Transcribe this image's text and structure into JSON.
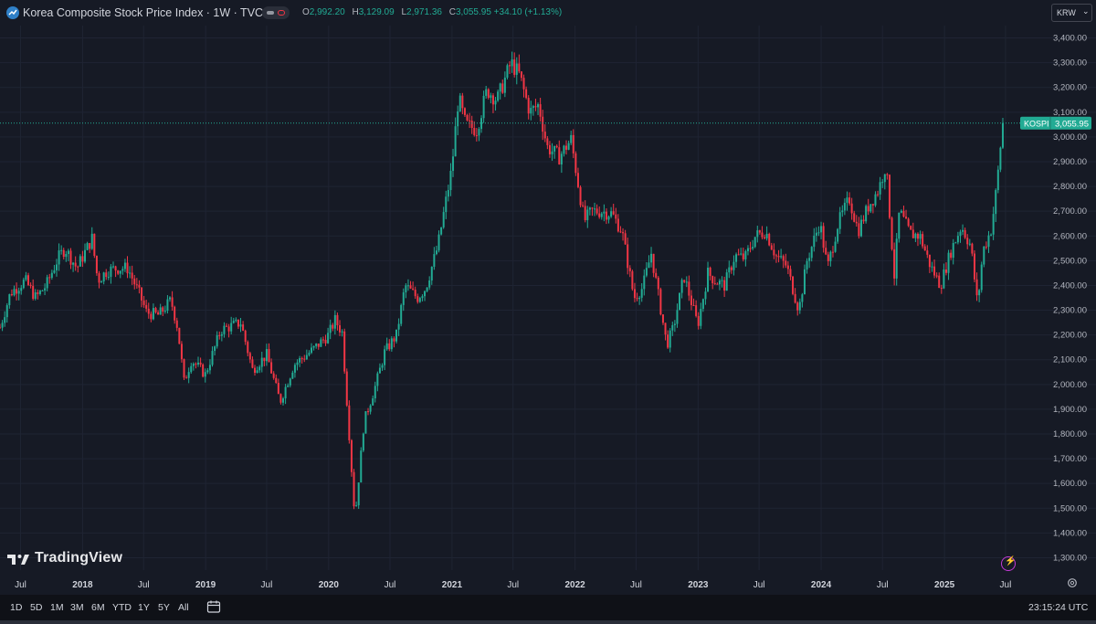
{
  "header": {
    "symbol_title": "Korea Composite Stock Price Index · 1W · TVC",
    "ohlc": [
      {
        "key": "O",
        "value": "2,992.20"
      },
      {
        "key": "H",
        "value": "3,129.09"
      },
      {
        "key": "L",
        "value": "2,971.36"
      },
      {
        "key": "C",
        "value": "3,055.95 +34.10 (+1.13%)"
      }
    ],
    "currency": "KRW",
    "currency_chevron": "⌄"
  },
  "branding": {
    "logo_text": "TradingView"
  },
  "bottom_bar": {
    "ranges": [
      "1D",
      "5D",
      "1M",
      "3M",
      "6M",
      "YTD",
      "1Y",
      "5Y",
      "All"
    ],
    "clock": "23:15:24 UTC"
  },
  "colors": {
    "background": "#161a25",
    "up": "#22ab94",
    "down": "#f23645",
    "grid": "#1f2433",
    "price_tag": "#22ab94"
  },
  "chart_data": {
    "type": "candlestick",
    "title": "Korea Composite Stock Price Index · 1W · TVC",
    "series_label": "KOSPI",
    "last_price": 3055.95,
    "last_price_label": "3,055.95",
    "ylim": [
      1250,
      3450
    ],
    "y_ticks": [
      1300,
      1400,
      1500,
      1600,
      1700,
      1800,
      1900,
      2000,
      2100,
      2200,
      2300,
      2400,
      2500,
      2600,
      2700,
      2800,
      2900,
      3000,
      3100,
      3200,
      3300,
      3400
    ],
    "y_tick_labels": [
      "1,300.00",
      "1,400.00",
      "1,500.00",
      "1,600.00",
      "1,700.00",
      "1,800.00",
      "1,900.00",
      "2,000.00",
      "2,100.00",
      "2,200.00",
      "2,300.00",
      "2,400.00",
      "2,500.00",
      "2,600.00",
      "2,700.00",
      "2,800.00",
      "2,900.00",
      "3,000.00",
      "3,100.00",
      "3,200.00",
      "3,300.00",
      "3,400.00"
    ],
    "x_range": [
      "2017-05-01",
      "2025-07-31"
    ],
    "x_ticks": [
      {
        "date": "2017-07-01",
        "label": "Jul",
        "bold": false
      },
      {
        "date": "2018-01-01",
        "label": "2018",
        "bold": true
      },
      {
        "date": "2018-07-01",
        "label": "Jul",
        "bold": false
      },
      {
        "date": "2019-01-01",
        "label": "2019",
        "bold": true
      },
      {
        "date": "2019-07-01",
        "label": "Jul",
        "bold": false
      },
      {
        "date": "2020-01-01",
        "label": "2020",
        "bold": true
      },
      {
        "date": "2020-07-01",
        "label": "Jul",
        "bold": false
      },
      {
        "date": "2021-01-01",
        "label": "2021",
        "bold": true
      },
      {
        "date": "2021-07-01",
        "label": "Jul",
        "bold": false
      },
      {
        "date": "2022-01-01",
        "label": "2022",
        "bold": true
      },
      {
        "date": "2022-07-01",
        "label": "Jul",
        "bold": false
      },
      {
        "date": "2023-01-01",
        "label": "2023",
        "bold": true
      },
      {
        "date": "2023-07-01",
        "label": "Jul",
        "bold": false
      },
      {
        "date": "2024-01-01",
        "label": "2024",
        "bold": true
      },
      {
        "date": "2024-07-01",
        "label": "Jul",
        "bold": false
      },
      {
        "date": "2025-01-01",
        "label": "2025",
        "bold": true
      },
      {
        "date": "2025-07-01",
        "label": "Jul",
        "bold": false
      }
    ],
    "grid": true,
    "close_path": [
      [
        "2017-05-01",
        2230
      ],
      [
        "2017-06-01",
        2370
      ],
      [
        "2017-07-15",
        2420
      ],
      [
        "2017-08-15",
        2350
      ],
      [
        "2017-09-15",
        2400
      ],
      [
        "2017-10-20",
        2510
      ],
      [
        "2017-11-10",
        2550
      ],
      [
        "2017-12-15",
        2470
      ],
      [
        "2018-01-29",
        2590
      ],
      [
        "2018-02-15",
        2420
      ],
      [
        "2018-03-15",
        2460
      ],
      [
        "2018-04-15",
        2470
      ],
      [
        "2018-05-15",
        2470
      ],
      [
        "2018-06-20",
        2360
      ],
      [
        "2018-07-10",
        2290
      ],
      [
        "2018-08-15",
        2280
      ],
      [
        "2018-09-20",
        2340
      ],
      [
        "2018-10-10",
        2230
      ],
      [
        "2018-10-29",
        2010
      ],
      [
        "2018-11-20",
        2100
      ],
      [
        "2018-12-31",
        2040
      ],
      [
        "2019-02-15",
        2220
      ],
      [
        "2019-04-15",
        2250
      ],
      [
        "2019-05-20",
        2060
      ],
      [
        "2019-07-01",
        2120
      ],
      [
        "2019-08-10",
        1930
      ],
      [
        "2019-09-20",
        2080
      ],
      [
        "2019-11-15",
        2140
      ],
      [
        "2019-12-31",
        2200
      ],
      [
        "2020-01-20",
        2260
      ],
      [
        "2020-02-10",
        2210
      ],
      [
        "2020-03-19",
        1457
      ],
      [
        "2020-04-15",
        1850
      ],
      [
        "2020-05-20",
        2000
      ],
      [
        "2020-06-15",
        2130
      ],
      [
        "2020-07-20",
        2200
      ],
      [
        "2020-08-15",
        2400
      ],
      [
        "2020-09-20",
        2350
      ],
      [
        "2020-10-15",
        2390
      ],
      [
        "2020-11-20",
        2560
      ],
      [
        "2020-12-31",
        2870
      ],
      [
        "2021-01-20",
        3160
      ],
      [
        "2021-02-10",
        3050
      ],
      [
        "2021-03-15",
        3030
      ],
      [
        "2021-04-15",
        3190
      ],
      [
        "2021-05-15",
        3150
      ],
      [
        "2021-06-25",
        3300
      ],
      [
        "2021-07-20",
        3250
      ],
      [
        "2021-08-20",
        3100
      ],
      [
        "2021-09-15",
        3130
      ],
      [
        "2021-10-10",
        2960
      ],
      [
        "2021-11-15",
        2920
      ],
      [
        "2021-12-20",
        2990
      ],
      [
        "2022-01-28",
        2660
      ],
      [
        "2022-02-20",
        2700
      ],
      [
        "2022-03-20",
        2700
      ],
      [
        "2022-04-20",
        2690
      ],
      [
        "2022-05-20",
        2620
      ],
      [
        "2022-06-25",
        2350
      ],
      [
        "2022-07-20",
        2390
      ],
      [
        "2022-08-15",
        2530
      ],
      [
        "2022-09-30",
        2160
      ],
      [
        "2022-10-20",
        2230
      ],
      [
        "2022-11-20",
        2440
      ],
      [
        "2022-12-31",
        2240
      ],
      [
        "2023-01-30",
        2450
      ],
      [
        "2023-02-20",
        2420
      ],
      [
        "2023-03-20",
        2400
      ],
      [
        "2023-04-20",
        2520
      ],
      [
        "2023-05-20",
        2510
      ],
      [
        "2023-06-20",
        2600
      ],
      [
        "2023-07-20",
        2620
      ],
      [
        "2023-08-20",
        2520
      ],
      [
        "2023-09-20",
        2480
      ],
      [
        "2023-10-27",
        2300
      ],
      [
        "2023-11-20",
        2500
      ],
      [
        "2023-12-28",
        2655
      ],
      [
        "2024-01-20",
        2470
      ],
      [
        "2024-02-20",
        2650
      ],
      [
        "2024-03-25",
        2750
      ],
      [
        "2024-04-20",
        2620
      ],
      [
        "2024-05-20",
        2720
      ],
      [
        "2024-06-20",
        2790
      ],
      [
        "2024-07-11",
        2890
      ],
      [
        "2024-08-05",
        2440
      ],
      [
        "2024-08-20",
        2700
      ],
      [
        "2024-09-20",
        2610
      ],
      [
        "2024-10-20",
        2600
      ],
      [
        "2024-11-20",
        2480
      ],
      [
        "2024-12-20",
        2400
      ],
      [
        "2025-01-20",
        2540
      ],
      [
        "2025-02-20",
        2640
      ],
      [
        "2025-03-20",
        2560
      ],
      [
        "2025-04-09",
        2320
      ],
      [
        "2025-04-25",
        2540
      ],
      [
        "2025-05-20",
        2630
      ],
      [
        "2025-06-05",
        2800
      ],
      [
        "2025-06-20",
        3021
      ],
      [
        "2025-06-27",
        3056
      ]
    ]
  }
}
